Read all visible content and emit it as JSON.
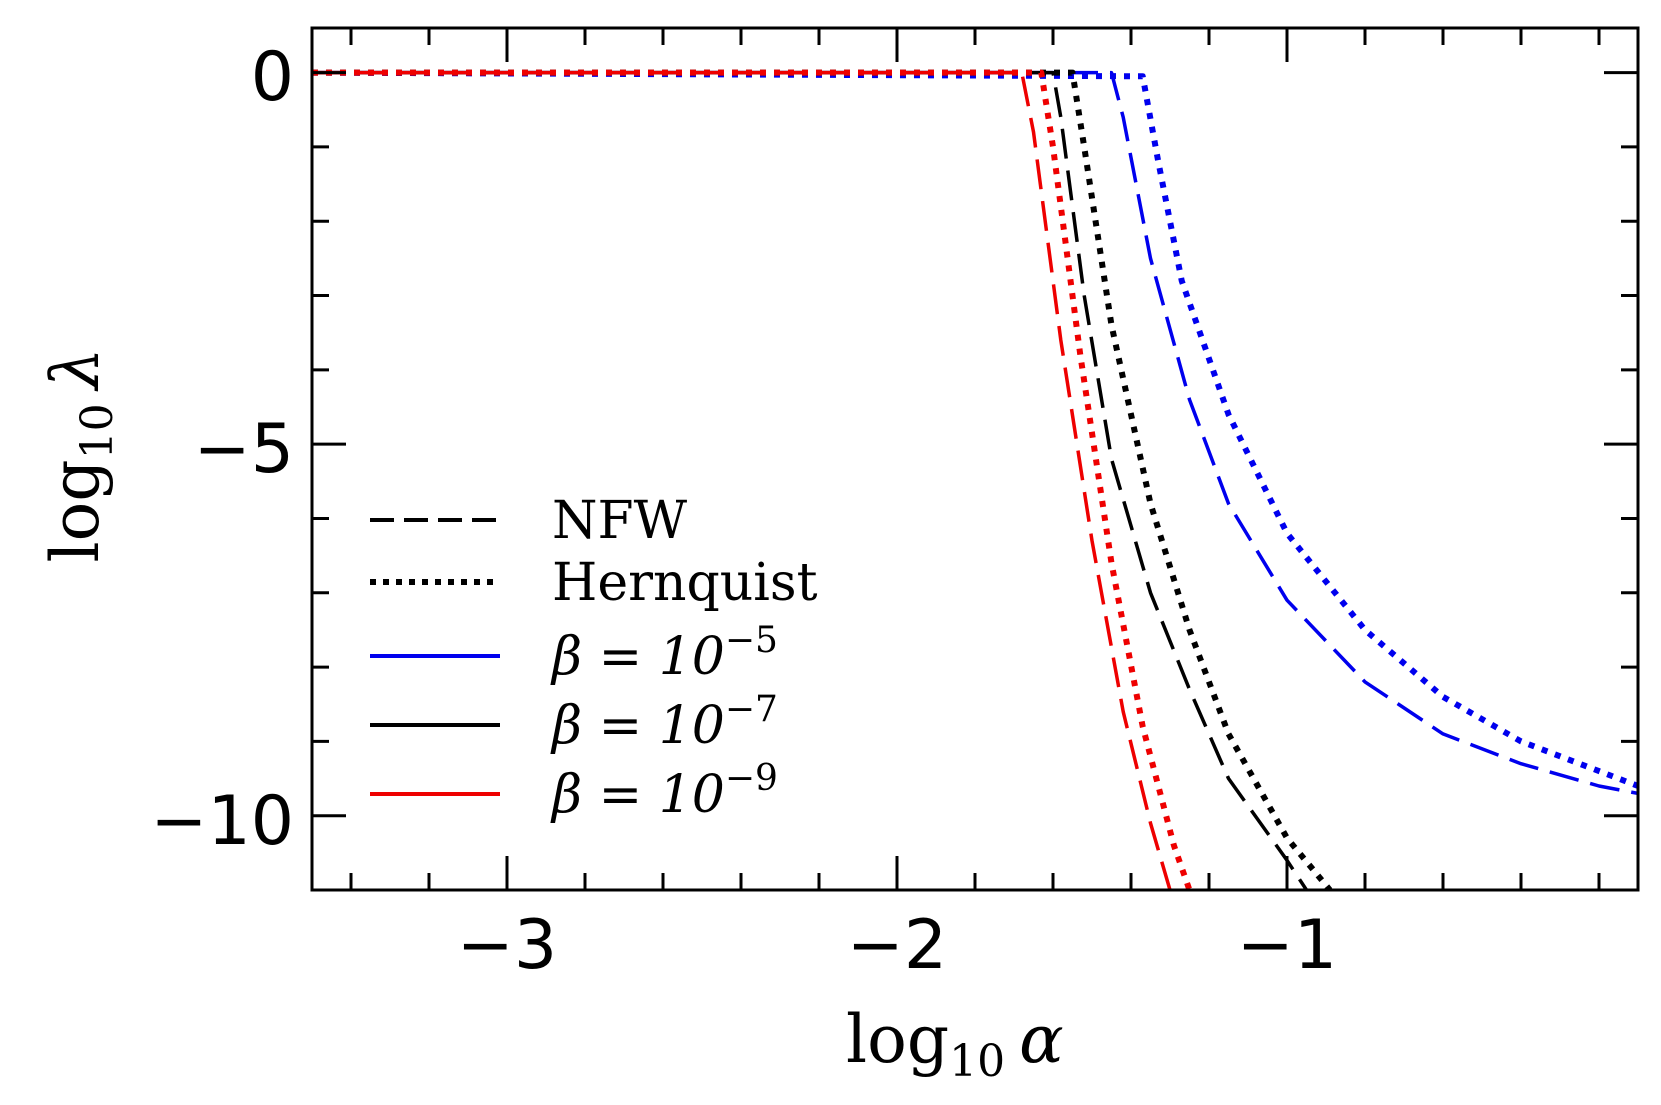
{
  "chart_data": {
    "type": "line",
    "xlabel": {
      "prefix": "log",
      "sub": "10",
      "var": "α"
    },
    "ylabel": {
      "prefix": "log",
      "sub": "10",
      "var": "λ"
    },
    "xlim": [
      -3.5,
      -0.1
    ],
    "ylim": [
      -11.0,
      0.6
    ],
    "x_major_ticks": [
      -3,
      -2,
      -1
    ],
    "x_tick_labels": [
      "−3",
      "−2",
      "−1"
    ],
    "x_minor_step": 0.2,
    "y_major_ticks": [
      0,
      -5,
      -10
    ],
    "y_tick_labels": [
      "0",
      "−5",
      "−10"
    ],
    "y_minor_step": 1,
    "grid": false,
    "ticks_direction": "in",
    "legend_position": "lower-left",
    "legend": [
      {
        "label": "NFW",
        "style": "dashed",
        "color": "#000000"
      },
      {
        "label": "Hernquist",
        "style": "dotted",
        "color": "#000000"
      },
      {
        "label_prefix": "β = 10",
        "exponent": "−5",
        "style": "solid",
        "color": "#0000ee"
      },
      {
        "label_prefix": "β = 10",
        "exponent": "−7",
        "style": "solid",
        "color": "#000000"
      },
      {
        "label_prefix": "β = 10",
        "exponent": "−9",
        "style": "solid",
        "color": "#ee0000"
      }
    ],
    "series": [
      {
        "beta_exponent": -5,
        "profile": "NFW",
        "color": "#0000ee",
        "style": "dashed",
        "points": [
          [
            -3.5,
            0
          ],
          [
            -1.45,
            0
          ],
          [
            -1.42,
            -0.6
          ],
          [
            -1.35,
            -2.5
          ],
          [
            -1.25,
            -4.4
          ],
          [
            -1.15,
            -5.8
          ],
          [
            -1.0,
            -7.1
          ],
          [
            -0.8,
            -8.2
          ],
          [
            -0.6,
            -8.9
          ],
          [
            -0.4,
            -9.3
          ],
          [
            -0.2,
            -9.6
          ],
          [
            -0.1,
            -9.7
          ]
        ]
      },
      {
        "beta_exponent": -5,
        "profile": "Hernquist",
        "color": "#0000ee",
        "style": "dotted",
        "points": [
          [
            -3.5,
            0
          ],
          [
            -1.37,
            -0.05
          ],
          [
            -1.33,
            -1.2
          ],
          [
            -1.27,
            -2.8
          ],
          [
            -1.15,
            -4.6
          ],
          [
            -1.0,
            -6.2
          ],
          [
            -0.8,
            -7.5
          ],
          [
            -0.6,
            -8.4
          ],
          [
            -0.4,
            -9.0
          ],
          [
            -0.2,
            -9.4
          ],
          [
            -0.1,
            -9.6
          ]
        ]
      },
      {
        "beta_exponent": -7,
        "profile": "NFW",
        "color": "#000000",
        "style": "dashed",
        "points": [
          [
            -3.5,
            0
          ],
          [
            -1.6,
            0
          ],
          [
            -1.58,
            -0.6
          ],
          [
            -1.52,
            -3.0
          ],
          [
            -1.45,
            -5.2
          ],
          [
            -1.35,
            -7.0
          ],
          [
            -1.25,
            -8.3
          ],
          [
            -1.15,
            -9.5
          ],
          [
            -1.0,
            -10.6
          ],
          [
            -0.95,
            -11.0
          ]
        ]
      },
      {
        "beta_exponent": -7,
        "profile": "Hernquist",
        "color": "#000000",
        "style": "dotted",
        "points": [
          [
            -3.5,
            0
          ],
          [
            -1.55,
            0
          ],
          [
            -1.52,
            -1.0
          ],
          [
            -1.45,
            -3.4
          ],
          [
            -1.35,
            -5.8
          ],
          [
            -1.25,
            -7.5
          ],
          [
            -1.15,
            -8.9
          ],
          [
            -1.0,
            -10.3
          ],
          [
            -0.89,
            -11.0
          ]
        ]
      },
      {
        "beta_exponent": -9,
        "profile": "NFW",
        "color": "#ee0000",
        "style": "dashed",
        "points": [
          [
            -3.5,
            0
          ],
          [
            -1.68,
            0
          ],
          [
            -1.65,
            -0.8
          ],
          [
            -1.58,
            -3.6
          ],
          [
            -1.5,
            -6.3
          ],
          [
            -1.42,
            -8.6
          ],
          [
            -1.35,
            -10.1
          ],
          [
            -1.3,
            -11.0
          ]
        ]
      },
      {
        "beta_exponent": -9,
        "profile": "Hernquist",
        "color": "#ee0000",
        "style": "dotted",
        "points": [
          [
            -3.5,
            0
          ],
          [
            -1.63,
            0
          ],
          [
            -1.6,
            -1.0
          ],
          [
            -1.53,
            -3.8
          ],
          [
            -1.45,
            -6.6
          ],
          [
            -1.37,
            -8.8
          ],
          [
            -1.29,
            -10.4
          ],
          [
            -1.25,
            -11.0
          ]
        ]
      }
    ]
  }
}
